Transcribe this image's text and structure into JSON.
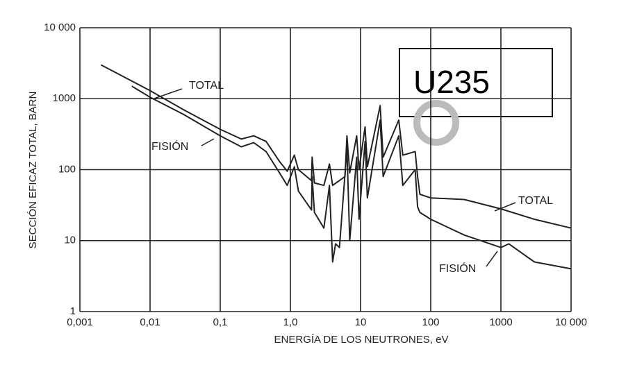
{
  "chart_data": {
    "type": "line",
    "xlabel": "ENERGÍA DE LOS NEUTRONES, eV",
    "ylabel": "SECCIÓN EFICAZ TOTAL, BARN",
    "annotation": "U235",
    "xscale": "log",
    "yscale": "log",
    "grid": true,
    "xlim": [
      0.001,
      10000
    ],
    "ylim": [
      1,
      10000
    ],
    "xticks": [
      {
        "value": 0.001,
        "label": "0,001"
      },
      {
        "value": 0.01,
        "label": "0,01"
      },
      {
        "value": 0.1,
        "label": "0,1"
      },
      {
        "value": 1,
        "label": "1,0"
      },
      10,
      100,
      1000,
      {
        "value": 10000,
        "label": "10 000"
      }
    ],
    "yticks": [
      1,
      10,
      100,
      1000,
      {
        "value": 10000,
        "label": "10 000"
      }
    ],
    "series": [
      {
        "name": "TOTAL",
        "color": "#222222",
        "x": [
          0.002,
          0.01,
          0.03,
          0.1,
          0.2,
          0.3,
          0.45,
          0.7,
          0.9,
          1.14,
          1.3,
          2.0,
          2.04,
          2.2,
          3.0,
          3.6,
          4.0,
          6.0,
          6.4,
          7.0,
          8.8,
          9.5,
          11.6,
          12.5,
          19,
          21,
          35,
          40,
          60,
          65,
          70,
          100,
          300,
          1000,
          3000,
          10000
        ],
        "values": [
          3000,
          1300,
          700,
          370,
          270,
          300,
          250,
          130,
          95,
          160,
          100,
          70,
          150,
          65,
          60,
          120,
          60,
          80,
          300,
          90,
          300,
          100,
          400,
          110,
          800,
          150,
          500,
          160,
          180,
          80,
          45,
          40,
          38,
          28,
          20,
          15
        ]
      },
      {
        "name": "FISIÓN",
        "color": "#222222",
        "x": [
          0.0055,
          0.01,
          0.03,
          0.1,
          0.2,
          0.3,
          0.45,
          0.7,
          0.9,
          1.14,
          1.3,
          2.0,
          2.04,
          2.2,
          3.0,
          3.6,
          4.0,
          4.4,
          5.0,
          6.4,
          7.0,
          8.8,
          9.5,
          11.6,
          12.5,
          19,
          21,
          35,
          40,
          60,
          65,
          70,
          100,
          300,
          1000,
          1300,
          3000,
          10000
        ],
        "values": [
          1500,
          1050,
          600,
          300,
          210,
          240,
          180,
          90,
          60,
          110,
          50,
          27,
          80,
          25,
          15,
          60,
          5,
          9,
          8,
          200,
          10,
          150,
          20,
          250,
          40,
          500,
          80,
          300,
          60,
          100,
          30,
          25,
          20,
          12,
          8,
          9,
          5,
          4
        ]
      }
    ]
  }
}
